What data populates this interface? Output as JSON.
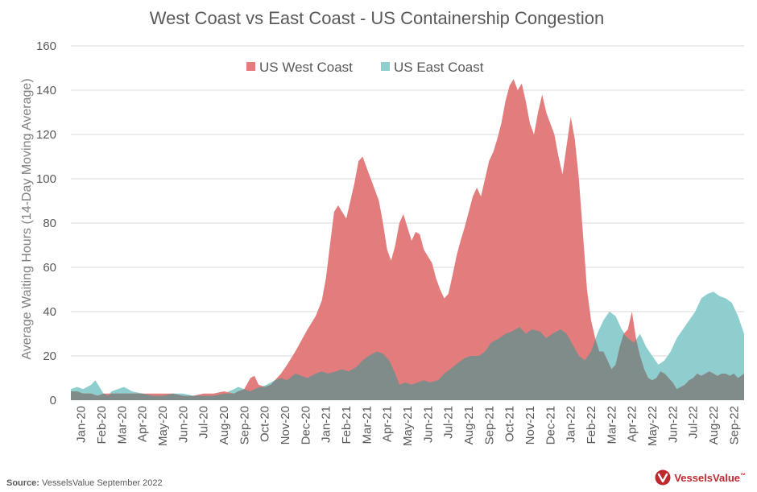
{
  "chart_data": {
    "type": "area",
    "title": "West Coast vs East Coast - US Containership Congestion",
    "ylabel": "Average Waiting Hours (14-Day Moving Average)",
    "xlabel": "",
    "ylim": [
      0,
      160
    ],
    "yticks": [
      0,
      20,
      40,
      60,
      80,
      100,
      120,
      140,
      160
    ],
    "grid": true,
    "legend_position": "top-center",
    "x_categories": [
      "Jan-20",
      "Feb-20",
      "Mar-20",
      "Apr-20",
      "May-20",
      "Jun-20",
      "Jul-20",
      "Aug-20",
      "Sep-20",
      "Oct-20",
      "Nov-20",
      "Dec-20",
      "Jan-21",
      "Feb-21",
      "Mar-21",
      "Apr-21",
      "May-21",
      "Jun-21",
      "Jul-21",
      "Aug-21",
      "Sep-21",
      "Oct-21",
      "Nov-21",
      "Dec-21",
      "Jan-22",
      "Feb-22",
      "Mar-22",
      "Apr-22",
      "May-22",
      "Jun-22",
      "Jul-22",
      "Aug-22",
      "Sep-22"
    ],
    "series": [
      {
        "name": "US West Coast",
        "color": "#e37c7c",
        "points": [
          [
            0,
            4
          ],
          [
            0.3,
            4
          ],
          [
            0.6,
            3
          ],
          [
            1,
            3
          ],
          [
            1.3,
            2
          ],
          [
            1.6,
            3
          ],
          [
            2,
            3
          ],
          [
            2.5,
            3
          ],
          [
            3,
            3
          ],
          [
            3.5,
            3
          ],
          [
            4,
            3
          ],
          [
            4.5,
            3
          ],
          [
            5,
            3
          ],
          [
            5.5,
            2
          ],
          [
            6,
            2
          ],
          [
            6.5,
            3
          ],
          [
            7,
            3
          ],
          [
            7.5,
            4
          ],
          [
            8,
            3
          ],
          [
            8.2,
            4
          ],
          [
            8.5,
            5
          ],
          [
            8.8,
            10
          ],
          [
            9,
            11
          ],
          [
            9.2,
            7
          ],
          [
            9.5,
            6
          ],
          [
            9.8,
            7
          ],
          [
            10,
            9
          ],
          [
            10.3,
            12
          ],
          [
            10.6,
            16
          ],
          [
            11,
            22
          ],
          [
            11.3,
            27
          ],
          [
            11.6,
            32
          ],
          [
            12,
            38
          ],
          [
            12.3,
            45
          ],
          [
            12.5,
            55
          ],
          [
            12.7,
            70
          ],
          [
            12.9,
            85
          ],
          [
            13.1,
            88
          ],
          [
            13.3,
            85
          ],
          [
            13.5,
            82
          ],
          [
            13.7,
            90
          ],
          [
            13.9,
            98
          ],
          [
            14.1,
            108
          ],
          [
            14.3,
            110
          ],
          [
            14.5,
            105
          ],
          [
            14.7,
            100
          ],
          [
            14.9,
            95
          ],
          [
            15.1,
            90
          ],
          [
            15.3,
            80
          ],
          [
            15.5,
            68
          ],
          [
            15.7,
            63
          ],
          [
            15.9,
            70
          ],
          [
            16.1,
            80
          ],
          [
            16.3,
            84
          ],
          [
            16.5,
            78
          ],
          [
            16.7,
            72
          ],
          [
            16.9,
            76
          ],
          [
            17.1,
            75
          ],
          [
            17.3,
            68
          ],
          [
            17.5,
            65
          ],
          [
            17.7,
            62
          ],
          [
            17.9,
            55
          ],
          [
            18.1,
            50
          ],
          [
            18.3,
            46
          ],
          [
            18.5,
            48
          ],
          [
            18.7,
            56
          ],
          [
            18.9,
            65
          ],
          [
            19.1,
            72
          ],
          [
            19.3,
            78
          ],
          [
            19.5,
            85
          ],
          [
            19.7,
            92
          ],
          [
            19.9,
            96
          ],
          [
            20.1,
            92
          ],
          [
            20.3,
            100
          ],
          [
            20.5,
            108
          ],
          [
            20.7,
            112
          ],
          [
            20.9,
            118
          ],
          [
            21.1,
            125
          ],
          [
            21.3,
            135
          ],
          [
            21.5,
            142
          ],
          [
            21.7,
            145
          ],
          [
            21.9,
            140
          ],
          [
            22.1,
            143
          ],
          [
            22.3,
            135
          ],
          [
            22.5,
            125
          ],
          [
            22.7,
            120
          ],
          [
            22.9,
            130
          ],
          [
            23.1,
            138
          ],
          [
            23.3,
            130
          ],
          [
            23.5,
            125
          ],
          [
            23.7,
            120
          ],
          [
            23.9,
            110
          ],
          [
            24.1,
            102
          ],
          [
            24.3,
            115
          ],
          [
            24.5,
            128
          ],
          [
            24.7,
            118
          ],
          [
            24.9,
            100
          ],
          [
            25.1,
            75
          ],
          [
            25.3,
            50
          ],
          [
            25.5,
            36
          ],
          [
            25.7,
            28
          ],
          [
            25.9,
            22
          ],
          [
            26.1,
            22
          ],
          [
            26.3,
            18
          ],
          [
            26.5,
            14
          ],
          [
            26.7,
            16
          ],
          [
            26.9,
            24
          ],
          [
            27.1,
            30
          ],
          [
            27.3,
            32
          ],
          [
            27.5,
            40
          ],
          [
            27.7,
            28
          ],
          [
            27.9,
            20
          ],
          [
            28.1,
            14
          ],
          [
            28.3,
            10
          ],
          [
            28.5,
            9
          ],
          [
            28.7,
            10
          ],
          [
            28.9,
            13
          ],
          [
            29.1,
            12
          ],
          [
            29.3,
            10
          ],
          [
            29.5,
            8
          ],
          [
            29.7,
            5
          ],
          [
            29.9,
            6
          ],
          [
            30.1,
            7
          ],
          [
            30.3,
            9
          ],
          [
            30.5,
            10
          ],
          [
            30.7,
            12
          ],
          [
            30.9,
            11
          ],
          [
            31.1,
            12
          ],
          [
            31.3,
            13
          ],
          [
            31.5,
            12
          ],
          [
            31.7,
            11
          ],
          [
            31.9,
            12
          ],
          [
            32.1,
            12
          ],
          [
            32.3,
            11
          ],
          [
            32.5,
            12
          ],
          [
            32.7,
            10
          ],
          [
            33,
            12
          ]
        ]
      },
      {
        "name": "US East Coast",
        "color": "#8ecece",
        "points": [
          [
            0,
            5
          ],
          [
            0.3,
            6
          ],
          [
            0.6,
            5
          ],
          [
            1,
            7
          ],
          [
            1.2,
            9
          ],
          [
            1.4,
            6
          ],
          [
            1.6,
            3
          ],
          [
            1.8,
            2
          ],
          [
            2,
            4
          ],
          [
            2.3,
            5
          ],
          [
            2.6,
            6
          ],
          [
            3,
            4
          ],
          [
            3.5,
            3
          ],
          [
            4,
            2
          ],
          [
            4.5,
            2
          ],
          [
            5,
            3
          ],
          [
            5.5,
            3
          ],
          [
            6,
            2
          ],
          [
            6.5,
            2
          ],
          [
            7,
            2
          ],
          [
            7.5,
            3
          ],
          [
            8,
            5
          ],
          [
            8.2,
            6
          ],
          [
            8.5,
            5
          ],
          [
            8.8,
            4
          ],
          [
            9,
            5
          ],
          [
            9.3,
            6
          ],
          [
            9.6,
            7
          ],
          [
            10,
            9
          ],
          [
            10.3,
            10
          ],
          [
            10.6,
            9
          ],
          [
            11,
            12
          ],
          [
            11.3,
            11
          ],
          [
            11.6,
            10
          ],
          [
            12,
            12
          ],
          [
            12.3,
            13
          ],
          [
            12.6,
            12
          ],
          [
            13,
            13
          ],
          [
            13.3,
            14
          ],
          [
            13.6,
            13
          ],
          [
            14,
            15
          ],
          [
            14.3,
            18
          ],
          [
            14.6,
            20
          ],
          [
            15,
            22
          ],
          [
            15.3,
            21
          ],
          [
            15.6,
            18
          ],
          [
            15.9,
            12
          ],
          [
            16.1,
            7
          ],
          [
            16.4,
            8
          ],
          [
            16.7,
            7
          ],
          [
            17,
            8
          ],
          [
            17.3,
            9
          ],
          [
            17.6,
            8
          ],
          [
            18,
            9
          ],
          [
            18.3,
            12
          ],
          [
            18.6,
            14
          ],
          [
            19,
            17
          ],
          [
            19.3,
            19
          ],
          [
            19.6,
            20
          ],
          [
            20,
            20
          ],
          [
            20.3,
            22
          ],
          [
            20.6,
            26
          ],
          [
            21,
            28
          ],
          [
            21.3,
            30
          ],
          [
            21.6,
            31
          ],
          [
            22,
            33
          ],
          [
            22.3,
            30
          ],
          [
            22.6,
            32
          ],
          [
            23,
            31
          ],
          [
            23.3,
            28
          ],
          [
            23.6,
            30
          ],
          [
            24,
            32
          ],
          [
            24.3,
            30
          ],
          [
            24.6,
            25
          ],
          [
            24.9,
            20
          ],
          [
            25.2,
            18
          ],
          [
            25.5,
            22
          ],
          [
            25.8,
            30
          ],
          [
            26.1,
            36
          ],
          [
            26.4,
            40
          ],
          [
            26.7,
            38
          ],
          [
            27,
            32
          ],
          [
            27.3,
            28
          ],
          [
            27.6,
            26
          ],
          [
            27.9,
            30
          ],
          [
            28.2,
            24
          ],
          [
            28.5,
            20
          ],
          [
            28.8,
            16
          ],
          [
            29.1,
            18
          ],
          [
            29.4,
            22
          ],
          [
            29.7,
            28
          ],
          [
            30,
            32
          ],
          [
            30.3,
            36
          ],
          [
            30.6,
            40
          ],
          [
            30.9,
            46
          ],
          [
            31.2,
            48
          ],
          [
            31.5,
            49
          ],
          [
            31.8,
            47
          ],
          [
            32.1,
            46
          ],
          [
            32.4,
            44
          ],
          [
            32.7,
            38
          ],
          [
            33,
            30
          ]
        ]
      }
    ]
  },
  "source": {
    "label": "Source:",
    "text": "VesselsValue September 2022"
  },
  "brand": {
    "name": "VesselsValue",
    "tm": "™",
    "color": "#c0282f"
  }
}
